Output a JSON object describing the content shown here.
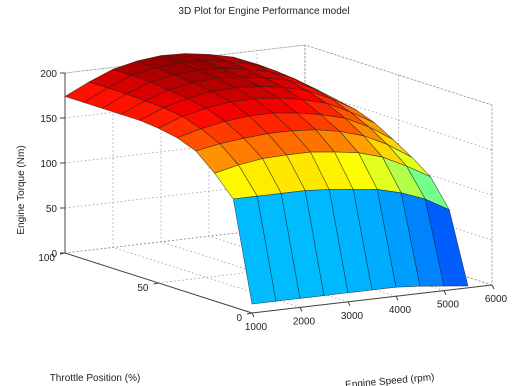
{
  "chart_data": {
    "type": "surface3d",
    "title": "3D Plot for Engine Performance model",
    "xlabel": "Engine Speed (rpm)",
    "ylabel": "Throttle Position (%)",
    "zlabel": "Engine Torque (Nm)",
    "xlim": [
      1000,
      6000
    ],
    "ylim": [
      0,
      100
    ],
    "zlim": [
      0,
      200
    ],
    "x_ticks": [
      1000,
      2000,
      3000,
      4000,
      5000,
      6000
    ],
    "y_ticks": [
      0,
      50,
      100
    ],
    "z_ticks": [
      0,
      50,
      100,
      150,
      200
    ],
    "grid": true,
    "colormap": "jet",
    "engine_speed_rpm": [
      1000,
      1500,
      2000,
      2500,
      3000,
      3500,
      4000,
      4500,
      5000,
      5500
    ],
    "throttle_position_pct": [
      0,
      10,
      20,
      30,
      40,
      50,
      60,
      70,
      80,
      90,
      100
    ],
    "torque_nm": [
      [
        10,
        10,
        10,
        10,
        10,
        10,
        10,
        8,
        5,
        2
      ],
      [
        120,
        120,
        120,
        120,
        118,
        115,
        112,
        105,
        95,
        80
      ],
      [
        142,
        148,
        152,
        153,
        153,
        150,
        146,
        138,
        125,
        110
      ],
      [
        160,
        165,
        168,
        170,
        170,
        168,
        163,
        155,
        142,
        125
      ],
      [
        168,
        175,
        180,
        183,
        183,
        180,
        175,
        168,
        155,
        138
      ],
      [
        172,
        182,
        188,
        192,
        192,
        190,
        185,
        178,
        165,
        150
      ],
      [
        174,
        185,
        192,
        197,
        198,
        196,
        192,
        185,
        173,
        158
      ],
      [
        174,
        186,
        195,
        200,
        202,
        200,
        196,
        190,
        178,
        162
      ],
      [
        174,
        187,
        197,
        202,
        204,
        203,
        199,
        193,
        182,
        166
      ],
      [
        174,
        187,
        198,
        203,
        206,
        205,
        201,
        195,
        184,
        168
      ],
      [
        174,
        187,
        198,
        204,
        207,
        206,
        202,
        196,
        185,
        170
      ]
    ]
  }
}
